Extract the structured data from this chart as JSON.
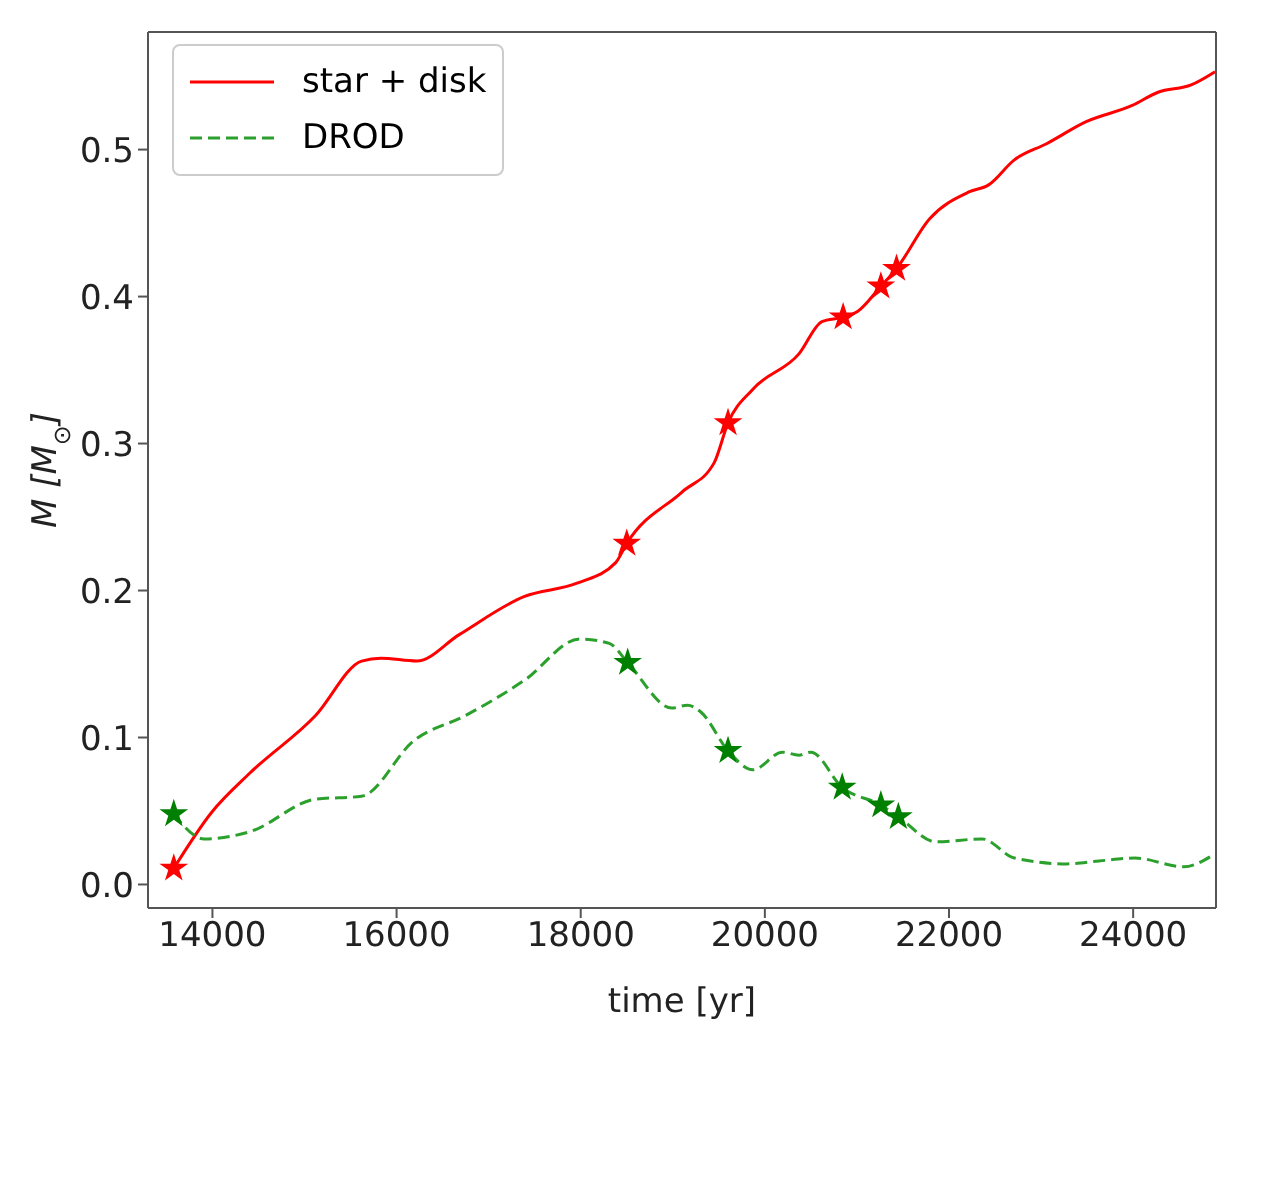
{
  "chart_data": {
    "type": "line",
    "xlabel": "time [yr]",
    "ylabel": "M [M$_{⊙}$]",
    "xlim": [
      13300,
      24900
    ],
    "ylim": [
      -0.016,
      0.58
    ],
    "xticks": [
      14000,
      16000,
      18000,
      20000,
      22000,
      24000
    ],
    "yticks": [
      {
        "value": 0,
        "label": "0.0"
      },
      {
        "value": 0.1,
        "label": "0.1"
      },
      {
        "value": 0.2,
        "label": "0.2"
      },
      {
        "value": 0.3,
        "label": "0.3"
      },
      {
        "value": 0.4,
        "label": "0.4"
      },
      {
        "value": 0.5,
        "label": "0.5"
      }
    ],
    "grid": false,
    "legend": "top left",
    "series": [
      {
        "name": "star + disk",
        "color": "#ff0000",
        "line_style": "solid",
        "marker": "none",
        "x": [
          13580,
          13990,
          14410,
          15120,
          15620,
          15830,
          16220,
          16680,
          17390,
          17960,
          18380,
          18500,
          19100,
          19450,
          19600,
          19870,
          20370,
          20620,
          20850,
          21010,
          21260,
          21430,
          21790,
          22210,
          22430,
          22710,
          23060,
          23490,
          23990,
          24270,
          24630,
          24890
        ],
        "values": [
          0.011,
          0.049,
          0.076,
          0.115,
          0.152,
          0.154,
          0.152,
          0.17,
          0.196,
          0.205,
          0.219,
          0.232,
          0.267,
          0.287,
          0.314,
          0.337,
          0.361,
          0.383,
          0.386,
          0.39,
          0.407,
          0.419,
          0.453,
          0.471,
          0.476,
          0.493,
          0.504,
          0.519,
          0.53,
          0.539,
          0.544,
          0.553
        ]
      },
      {
        "name": "DROD",
        "color": "#2ca02c",
        "line_style": "dashed",
        "marker": "none",
        "x": [
          13580,
          13910,
          14410,
          15120,
          15620,
          16190,
          16750,
          17390,
          17990,
          18310,
          18510,
          18990,
          19160,
          19310,
          19600,
          19870,
          20190,
          20370,
          20500,
          20840,
          21260,
          21450,
          21860,
          22360,
          22710,
          23280,
          23630,
          24020,
          24550,
          24840
        ],
        "values": [
          0.048,
          0.031,
          0.036,
          0.058,
          0.06,
          0.098,
          0.115,
          0.139,
          0.167,
          0.164,
          0.151,
          0.12,
          0.122,
          0.117,
          0.091,
          0.078,
          0.09,
          0.088,
          0.09,
          0.066,
          0.054,
          0.046,
          0.029,
          0.031,
          0.018,
          0.014,
          0.016,
          0.018,
          0.012,
          0.019
        ]
      },
      {
        "type": "scatter",
        "color": "#ff0000",
        "marker": "star",
        "x": [
          13580,
          18500,
          19600,
          20850,
          21260,
          21430
        ],
        "values": [
          0.011,
          0.232,
          0.314,
          0.386,
          0.407,
          0.419
        ]
      },
      {
        "type": "scatter",
        "color": "#008000",
        "marker": "star",
        "x": [
          13580,
          18510,
          19600,
          20840,
          21260,
          21450
        ],
        "values": [
          0.048,
          0.151,
          0.091,
          0.066,
          0.054,
          0.046
        ]
      }
    ]
  }
}
